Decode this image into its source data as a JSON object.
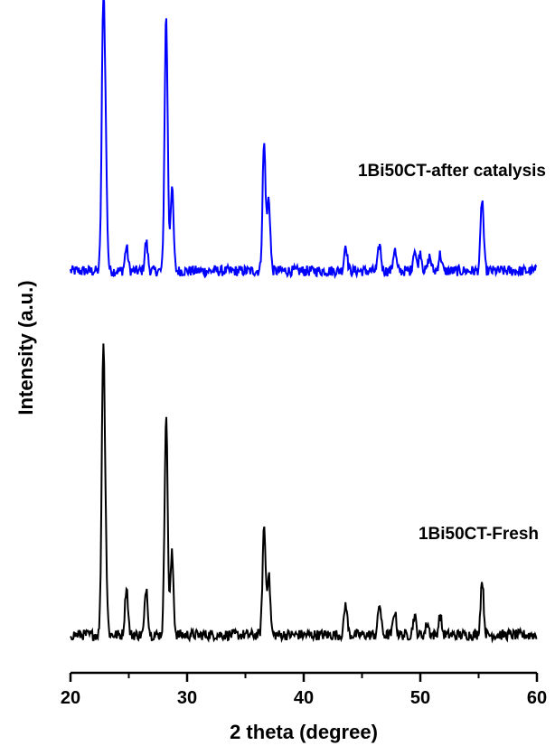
{
  "chart_data": {
    "type": "line",
    "title": "",
    "xlabel": "2 theta (degree)",
    "ylabel": "Intensity (a.u.)",
    "xlim": [
      20,
      60
    ],
    "xticks": [
      "20",
      "30",
      "40",
      "50",
      "60"
    ],
    "yticks_shown": false,
    "grid": false,
    "legend": "none",
    "series": [
      {
        "name": "1Bi50CT-after catalysis",
        "color": "#0000ff",
        "baseline": 1.0,
        "peaks": [
          {
            "x": 22.8,
            "h": 1.0
          },
          {
            "x": 23.0,
            "h": 0.45
          },
          {
            "x": 24.8,
            "h": 0.1
          },
          {
            "x": 26.5,
            "h": 0.12
          },
          {
            "x": 28.2,
            "h": 1.07
          },
          {
            "x": 28.7,
            "h": 0.35
          },
          {
            "x": 36.6,
            "h": 0.53
          },
          {
            "x": 37.0,
            "h": 0.3
          },
          {
            "x": 43.6,
            "h": 0.11
          },
          {
            "x": 46.5,
            "h": 0.11
          },
          {
            "x": 47.8,
            "h": 0.09
          },
          {
            "x": 49.5,
            "h": 0.09
          },
          {
            "x": 50.0,
            "h": 0.08
          },
          {
            "x": 50.8,
            "h": 0.06
          },
          {
            "x": 51.7,
            "h": 0.07
          },
          {
            "x": 55.3,
            "h": 0.3
          }
        ]
      },
      {
        "name": "1Bi50CT-Fresh",
        "color": "#000000",
        "baseline": 0.0,
        "peaks": [
          {
            "x": 22.8,
            "h": 1.12
          },
          {
            "x": 23.0,
            "h": 0.3
          },
          {
            "x": 24.8,
            "h": 0.2
          },
          {
            "x": 26.5,
            "h": 0.2
          },
          {
            "x": 28.2,
            "h": 0.93
          },
          {
            "x": 28.7,
            "h": 0.34
          },
          {
            "x": 36.6,
            "h": 0.45
          },
          {
            "x": 37.0,
            "h": 0.25
          },
          {
            "x": 43.6,
            "h": 0.13
          },
          {
            "x": 46.5,
            "h": 0.13
          },
          {
            "x": 47.8,
            "h": 0.1
          },
          {
            "x": 49.5,
            "h": 0.08
          },
          {
            "x": 50.6,
            "h": 0.05
          },
          {
            "x": 51.7,
            "h": 0.08
          },
          {
            "x": 55.3,
            "h": 0.23
          }
        ]
      }
    ]
  }
}
